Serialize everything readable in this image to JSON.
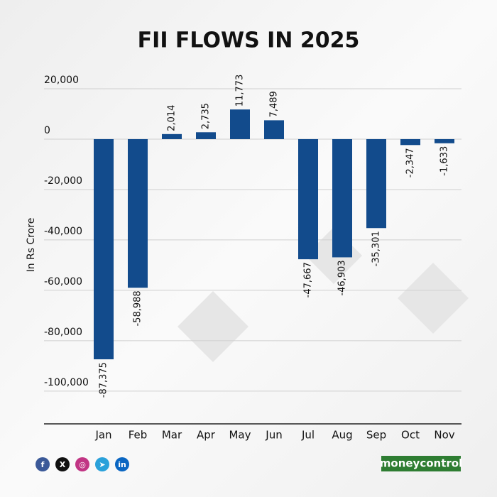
{
  "chart_data": {
    "type": "bar",
    "title": "FII FLOWS IN 2025",
    "y_label": "In Rs Crore",
    "categories": [
      "Jan",
      "Feb",
      "Mar",
      "Apr",
      "May",
      "Jun",
      "Jul",
      "Aug",
      "Sep",
      "Oct",
      "Nov"
    ],
    "values": [
      -87375,
      -58988,
      2014,
      2735,
      11773,
      7489,
      -47667,
      -46903,
      -35301,
      -2347,
      -1633
    ],
    "value_labels": [
      "-87,375",
      "-58,988",
      "2,014",
      "2,735",
      "11,773",
      "7,489",
      "-47,667",
      "-46,903",
      "-35,301",
      "-2,347",
      "-1,633"
    ],
    "color": "#124b8c",
    "ylim": [
      -113000,
      20000
    ],
    "yticks": [
      {
        "value": 20000,
        "label": "20,000"
      },
      0,
      {
        "value": -20000,
        "label": "-20,000"
      },
      {
        "value": -40000,
        "label": "-40,000"
      },
      {
        "value": -60000,
        "label": "-60,000"
      },
      {
        "value": -80000,
        "label": "-80,000"
      },
      {
        "value": -100000,
        "label": "-100,000"
      }
    ],
    "grid": true
  },
  "footer": {
    "social": [
      "f",
      "X",
      "◎",
      "➤",
      "in"
    ],
    "brand": "moneycontrol"
  }
}
